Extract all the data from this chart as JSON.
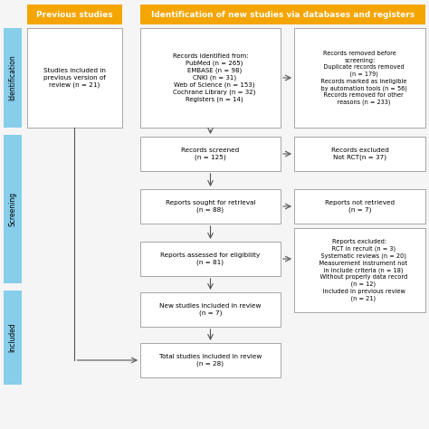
{
  "bg_color": "#f5f5f5",
  "header_gold": "#F5A500",
  "box_fill": "#ffffff",
  "box_edge": "#999999",
  "side_bar_color": "#87CEEB",
  "arrow_color": "#555555",
  "text_color": "#000000",
  "font_size": 5.2,
  "header_font_size": 6.5,
  "col_headers": [
    "Previous studies",
    "Identification of new studies via databases and registers"
  ],
  "row_labels": [
    "Identification",
    "Screening",
    "Included"
  ],
  "box_prev_studies": "Studies included in\nprevious version of\nreview (n = 21)",
  "box_identified": "Records identified from:\n    PubMed (n = 265)\n    EMBASE (n = 98)\n    CNKI (n = 31)\n    Web of Science (n = 153)\n    Cochrane Library (n = 32)\n    Registers (n = 14)",
  "box_removed_before": "Records removed before\nscreening:\n    Duplicate records removed\n    (n = 179)\n    Records marked as ineligible\n    by automation tools (n = 56)\n    Records removed for other\n    reasons (n = 233)",
  "box_screened": "Records screened\n(n = 125)",
  "box_excluded_rct": "Records excluded\nNot RCT(n = 37)",
  "box_sought": "Reports sought for retrieval\n(n = 88)",
  "box_not_retrieved": "Reports not retrieved\n(n = 7)",
  "box_assessed": "Reports assessed for eligibility\n(n = 81)",
  "box_reports_excluded": "Reports excluded:\n    RCT in recruit (n = 3)\n    Systematic reviews (n = 20)\n    Measurement instrument not\n    in include criteria (n = 18)\n    Without properly data record\n    (n = 12)\n    Included in previous review\n    (n = 21)",
  "box_new_studies": "New studies included in review\n(n = 7)",
  "box_total": "Total studies included in review\n(n = 28)"
}
